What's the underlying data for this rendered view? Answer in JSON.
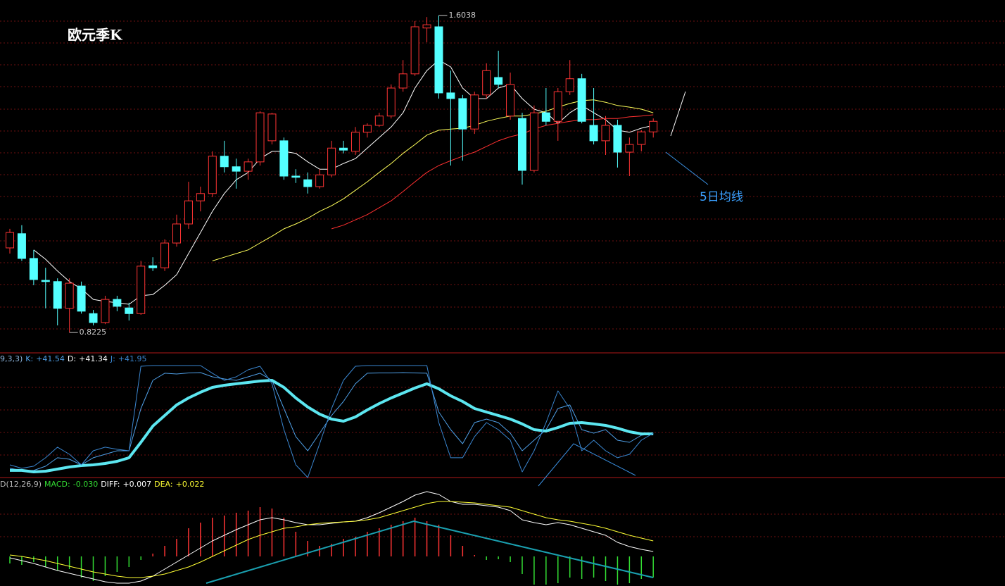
{
  "chart_data": [
    {
      "type": "candlestick",
      "title": "欧元季K",
      "annotation": "5日均线",
      "up_color": "#ff3434",
      "down_color": "#54ffff",
      "grid": true,
      "ylim": [
        0.774,
        1.642
      ],
      "open": [
        1.031,
        1.066,
        1.005,
        0.951,
        0.948,
        0.882,
        0.937,
        0.869,
        0.847,
        0.904,
        0.883,
        0.869,
        0.987,
        0.982,
        1.043,
        1.09,
        1.147,
        1.165,
        1.257,
        1.231,
        1.22,
        1.243,
        1.295,
        1.295,
        1.208,
        1.199,
        1.182,
        1.211,
        1.277,
        1.269,
        1.316,
        1.333,
        1.356,
        1.425,
        1.46,
        1.573,
        1.576,
        1.413,
        1.399,
        1.324,
        1.408,
        1.451,
        1.356,
        1.35,
        1.222,
        1.364,
        1.343,
        1.416,
        1.448,
        1.333,
        1.295,
        1.333,
        1.267,
        1.286,
        1.317
      ],
      "high": [
        1.078,
        1.087,
        1.026,
        0.982,
        0.956,
        0.956,
        0.948,
        0.878,
        0.913,
        0.913,
        0.896,
        0.999,
        1.008,
        1.052,
        1.113,
        1.194,
        1.182,
        1.269,
        1.295,
        1.251,
        1.251,
        1.368,
        1.364,
        1.303,
        1.225,
        1.217,
        1.225,
        1.295,
        1.295,
        1.329,
        1.338,
        1.364,
        1.434,
        1.494,
        1.59,
        1.6,
        1.6038,
        1.468,
        1.408,
        1.416,
        1.486,
        1.517,
        1.463,
        1.364,
        1.382,
        1.425,
        1.425,
        1.494,
        1.46,
        1.425,
        1.356,
        1.347,
        1.303,
        1.321,
        1.35
      ],
      "low": [
        1.017,
        0.999,
        0.939,
        0.882,
        0.84,
        0.8225,
        0.869,
        0.84,
        0.843,
        0.875,
        0.852,
        0.866,
        0.974,
        0.974,
        1.034,
        1.078,
        1.121,
        1.156,
        1.217,
        1.177,
        1.199,
        1.234,
        1.286,
        1.199,
        1.191,
        1.165,
        1.177,
        1.205,
        1.264,
        1.26,
        1.303,
        1.329,
        1.35,
        1.416,
        1.455,
        1.538,
        1.399,
        1.234,
        1.246,
        1.312,
        1.399,
        1.425,
        1.347,
        1.187,
        1.217,
        1.333,
        1.295,
        1.408,
        1.338,
        1.286,
        1.26,
        1.229,
        1.208,
        1.269,
        1.303
      ],
      "close": [
        1.069,
        1.005,
        0.953,
        0.948,
        0.882,
        0.944,
        0.875,
        0.847,
        0.904,
        0.887,
        0.869,
        0.986,
        0.982,
        1.043,
        1.09,
        1.147,
        1.165,
        1.257,
        1.231,
        1.22,
        1.243,
        1.364,
        1.361,
        1.208,
        1.205,
        1.182,
        1.211,
        1.277,
        1.272,
        1.316,
        1.333,
        1.356,
        1.425,
        1.46,
        1.576,
        1.581,
        1.413,
        1.399,
        1.324,
        1.408,
        1.468,
        1.434,
        1.434,
        1.222,
        1.364,
        1.343,
        1.416,
        1.448,
        1.343,
        1.295,
        1.333,
        1.267,
        1.286,
        1.317,
        1.343
      ],
      "series": [
        {
          "color": "#ffffff",
          "values": [
            null,
            null,
            1.026,
            1.003,
            0.974,
            0.948,
            0.93,
            0.904,
            0.899,
            0.896,
            0.892,
            0.913,
            0.916,
            0.939,
            0.965,
            1.017,
            1.069,
            1.121,
            1.165,
            1.199,
            1.217,
            1.251,
            1.269,
            1.269,
            1.264,
            1.243,
            1.225,
            1.225,
            1.239,
            1.251,
            1.277,
            1.303,
            1.329,
            1.364,
            1.425,
            1.468,
            1.494,
            1.477,
            1.425,
            1.399,
            1.399,
            1.425,
            1.434,
            1.399,
            1.373,
            1.364,
            1.338,
            1.364,
            1.382,
            1.364,
            1.347,
            1.321,
            1.316,
            1.326,
            1.333
          ]
        },
        {
          "color": "#ffff5a",
          "values": [
            null,
            null,
            null,
            null,
            null,
            null,
            null,
            null,
            null,
            null,
            null,
            null,
            null,
            null,
            null,
            null,
            null,
            0.999,
            1.008,
            1.017,
            1.026,
            1.043,
            1.06,
            1.078,
            1.09,
            1.104,
            1.121,
            1.135,
            1.152,
            1.173,
            1.194,
            1.217,
            1.239,
            1.264,
            1.286,
            1.309,
            1.321,
            1.324,
            1.326,
            1.333,
            1.343,
            1.35,
            1.356,
            1.356,
            1.361,
            1.368,
            1.378,
            1.387,
            1.394,
            1.396,
            1.39,
            1.382,
            1.378,
            1.373,
            1.364
          ]
        },
        {
          "color": "#ff3030",
          "values": [
            null,
            null,
            null,
            null,
            null,
            null,
            null,
            null,
            null,
            null,
            null,
            null,
            null,
            null,
            null,
            null,
            null,
            null,
            null,
            null,
            null,
            null,
            null,
            null,
            null,
            null,
            null,
            1.078,
            1.087,
            1.1,
            1.113,
            1.13,
            1.147,
            1.17,
            1.194,
            1.217,
            1.234,
            1.246,
            1.257,
            1.267,
            1.281,
            1.295,
            1.305,
            1.312,
            1.324,
            1.333,
            1.338,
            1.343,
            1.347,
            1.347,
            1.35,
            1.35,
            1.354,
            1.356,
            1.359
          ]
        }
      ]
    },
    {
      "type": "kdj",
      "label": "9,3,3)",
      "ylim": [
        0,
        113.3
      ],
      "grid": true,
      "series": [
        {
          "name": "K:",
          "color": "#4f9fe6",
          "width": 1,
          "last_label": "+41.54",
          "values": [
            8.7,
            6.7,
            6.7,
            10.7,
            18.7,
            17.3,
            12.0,
            18.7,
            22.0,
            25.3,
            25.3,
            65.3,
            92.0,
            98.7,
            98.0,
            99.0,
            99.3,
            95.3,
            93.3,
            92.0,
            95.3,
            98.7,
            92.0,
            65.3,
            38.7,
            25.3,
            42.0,
            58.7,
            72.0,
            88.7,
            98.7,
            99.0,
            99.0,
            99.3,
            99.0,
            98.7,
            62.0,
            45.3,
            32.0,
            52.0,
            55.3,
            52.0,
            42.0,
            25.3,
            35.3,
            45.3,
            65.3,
            68.7,
            45.3,
            42.0,
            45.3,
            35.3,
            33.3,
            40.0,
            41.54
          ]
        },
        {
          "name": "D:",
          "color": "#5ce6f0",
          "width": 4,
          "last_label": "+41.34",
          "values": [
            6.7,
            6.7,
            5.3,
            6.0,
            8.0,
            10.0,
            11.3,
            12.0,
            13.3,
            15.3,
            18.7,
            33.3,
            48.7,
            58.7,
            68.7,
            75.3,
            80.7,
            85.3,
            87.3,
            88.7,
            90.0,
            91.3,
            92.0,
            85.3,
            75.3,
            66.7,
            60.0,
            55.3,
            53.3,
            57.3,
            64.0,
            70.0,
            75.3,
            80.0,
            84.7,
            88.7,
            84.0,
            77.3,
            72.0,
            65.3,
            62.0,
            58.7,
            55.3,
            50.7,
            45.3,
            44.0,
            47.3,
            51.3,
            52.0,
            50.7,
            49.3,
            46.7,
            43.3,
            41.3,
            41.34
          ]
        },
        {
          "name": "J:",
          "color": "#3a86d0",
          "width": 1,
          "last_label": "+41.95",
          "values": [
            12.0,
            8.7,
            10.7,
            18.7,
            28.7,
            22.0,
            12.0,
            25.3,
            28.7,
            26.7,
            25.3,
            105.3,
            106.0,
            106.0,
            106.0,
            106.0,
            106.0,
            98.7,
            92.0,
            95.3,
            102.0,
            105.3,
            88.7,
            45.3,
            12.0,
            0,
            32.0,
            65.3,
            92.0,
            105.3,
            106.0,
            106.0,
            106.0,
            106.0,
            106.0,
            106.0,
            52.0,
            18.7,
            18.7,
            38.7,
            52.0,
            45.3,
            35.3,
            5.3,
            25.3,
            52.0,
            82.0,
            65.3,
            25.3,
            35.3,
            25.3,
            18.7,
            22.0,
            35.3,
            41.95
          ]
        }
      ]
    },
    {
      "type": "macd",
      "label": "D(12,26,9)",
      "ylim": [
        -0.042,
        0.11
      ],
      "grid": true,
      "series": [
        {
          "name": "MACD:",
          "color": "#33dd33",
          "style": "histogram",
          "up_color": "#ff3434",
          "down_color": "#33dd33",
          "last_label": "-0.030",
          "values": [
            -0.01,
            -0.012,
            -0.008,
            -0.015,
            -0.02,
            -0.018,
            -0.03,
            -0.035,
            -0.028,
            -0.022,
            -0.015,
            -0.005,
            0.004,
            0.015,
            0.025,
            0.04,
            0.048,
            0.055,
            0.058,
            0.062,
            0.065,
            0.07,
            0.068,
            0.055,
            0.035,
            0.022,
            0.015,
            0.018,
            0.025,
            0.028,
            0.035,
            0.04,
            0.045,
            0.05,
            0.055,
            0.05,
            0.045,
            0.03,
            0.015,
            0.002,
            -0.005,
            -0.004,
            -0.008,
            -0.025,
            -0.04,
            -0.04,
            -0.038,
            -0.03,
            -0.032,
            -0.03,
            -0.035,
            -0.04,
            -0.038,
            -0.032,
            -0.03
          ]
        },
        {
          "name": "DIFF:",
          "color": "#ffffff",
          "style": "line",
          "last_label": "+0.007",
          "values": [
            -0.002,
            -0.006,
            -0.01,
            -0.015,
            -0.02,
            -0.024,
            -0.028,
            -0.032,
            -0.036,
            -0.038,
            -0.038,
            -0.035,
            -0.028,
            -0.018,
            -0.008,
            0.002,
            0.012,
            0.022,
            0.03,
            0.038,
            0.045,
            0.052,
            0.055,
            0.052,
            0.048,
            0.045,
            0.045,
            0.047,
            0.049,
            0.05,
            0.055,
            0.062,
            0.07,
            0.078,
            0.087,
            0.092,
            0.088,
            0.078,
            0.074,
            0.074,
            0.072,
            0.07,
            0.065,
            0.052,
            0.048,
            0.045,
            0.048,
            0.045,
            0.04,
            0.035,
            0.03,
            0.02,
            0.014,
            0.01,
            0.007
          ]
        },
        {
          "name": "DEA:",
          "color": "#ffff33",
          "style": "line",
          "last_label": "+0.022",
          "values": [
            0.002,
            0.0,
            -0.003,
            -0.006,
            -0.01,
            -0.014,
            -0.018,
            -0.022,
            -0.025,
            -0.028,
            -0.03,
            -0.03,
            -0.028,
            -0.025,
            -0.02,
            -0.015,
            -0.008,
            0.0,
            0.008,
            0.016,
            0.024,
            0.03,
            0.035,
            0.04,
            0.042,
            0.045,
            0.047,
            0.048,
            0.049,
            0.05,
            0.052,
            0.055,
            0.06,
            0.065,
            0.07,
            0.075,
            0.078,
            0.078,
            0.077,
            0.076,
            0.074,
            0.072,
            0.07,
            0.065,
            0.06,
            0.055,
            0.052,
            0.05,
            0.047,
            0.044,
            0.04,
            0.035,
            0.03,
            0.026,
            0.022
          ]
        }
      ]
    }
  ]
}
